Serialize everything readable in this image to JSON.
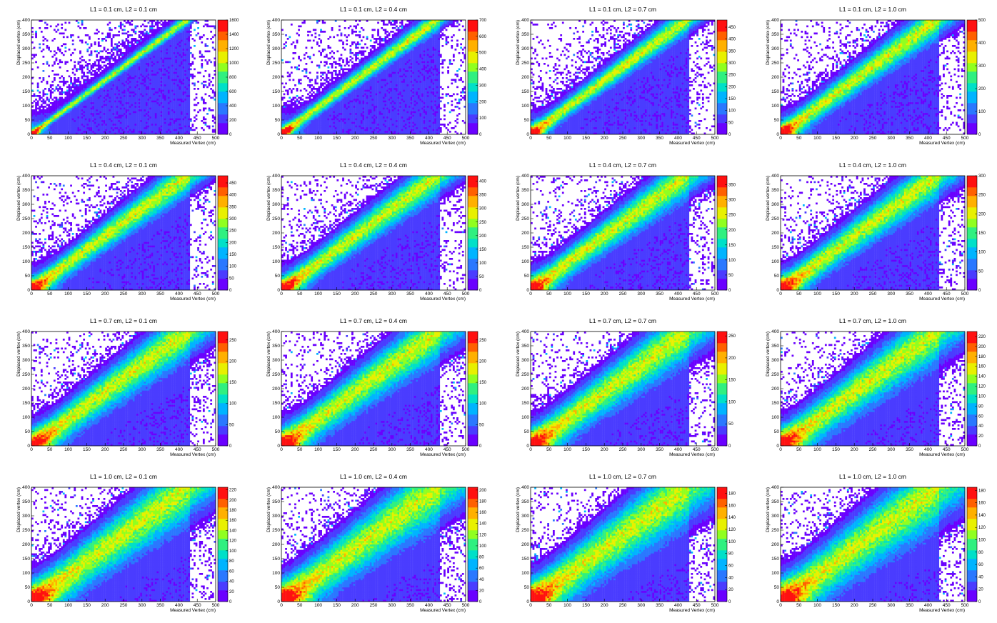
{
  "figure": {
    "rows": 4,
    "cols": 4
  },
  "chart_data": [
    {
      "type": "heatmap",
      "title": "L1 = 0.1 cm, L2 = 0.1 cm",
      "xlabel": "Measured Vertex (cm)",
      "ylabel": "Displaced vertex (cm)",
      "xlim": [
        0,
        500
      ],
      "ylim": [
        0,
        400
      ],
      "x_ticks": [
        "0",
        "50",
        "100",
        "150",
        "200",
        "250",
        "300",
        "350",
        "400",
        "450",
        "500"
      ],
      "y_ticks": [
        "0",
        "50",
        "100",
        "150",
        "200",
        "250",
        "300",
        "350",
        "400"
      ],
      "zlim": [
        0,
        1600
      ],
      "z_ticks": [
        "0",
        "200",
        "400",
        "600",
        "800",
        "1000",
        "1200",
        "1400",
        "1600"
      ],
      "band": {
        "slope": 0.95,
        "offset": 0,
        "width_cm": 8,
        "peak_z": 1600
      }
    },
    {
      "type": "heatmap",
      "title": "L1 = 0.1 cm, L2 = 0.4 cm",
      "xlabel": "Measured Vertex (cm)",
      "ylabel": "Displaced vertex (cm)",
      "xlim": [
        0,
        500
      ],
      "ylim": [
        0,
        400
      ],
      "x_ticks": [
        "0",
        "50",
        "100",
        "150",
        "200",
        "250",
        "300",
        "350",
        "400",
        "450",
        "500"
      ],
      "y_ticks": [
        "0",
        "50",
        "100",
        "150",
        "200",
        "250",
        "300",
        "350",
        "400"
      ],
      "zlim": [
        0,
        700
      ],
      "z_ticks": [
        "0",
        "100",
        "200",
        "300",
        "400",
        "500",
        "600",
        "700"
      ],
      "band": {
        "slope": 0.95,
        "offset": 0,
        "width_cm": 14,
        "peak_z": 700
      }
    },
    {
      "type": "heatmap",
      "title": "L1 = 0.1 cm, L2 = 0.7 cm",
      "xlabel": "Measured Vertex (cm)",
      "ylabel": "Displaced vertex (cm)",
      "xlim": [
        0,
        500
      ],
      "ylim": [
        0,
        400
      ],
      "x_ticks": [
        "0",
        "50",
        "100",
        "150",
        "200",
        "250",
        "300",
        "350",
        "400",
        "450",
        "500"
      ],
      "y_ticks": [
        "0",
        "50",
        "100",
        "150",
        "200",
        "250",
        "300",
        "350",
        "400"
      ],
      "zlim": [
        0,
        480
      ],
      "z_ticks": [
        "0",
        "50",
        "100",
        "150",
        "200",
        "250",
        "300",
        "350",
        "400",
        "450"
      ],
      "band": {
        "slope": 0.95,
        "offset": 0,
        "width_cm": 18,
        "peak_z": 470
      }
    },
    {
      "type": "heatmap",
      "title": "L1 = 0.1 cm, L2 = 1.0 cm",
      "xlabel": "Measured Vertex (cm)",
      "ylabel": "Displaced vertex (cm)",
      "xlim": [
        0,
        500
      ],
      "ylim": [
        0,
        400
      ],
      "x_ticks": [
        "0",
        "50",
        "100",
        "150",
        "200",
        "250",
        "300",
        "350",
        "400",
        "450",
        "500"
      ],
      "y_ticks": [
        "0",
        "50",
        "100",
        "150",
        "200",
        "250",
        "300",
        "350",
        "400"
      ],
      "zlim": [
        0,
        500
      ],
      "z_ticks": [
        "0",
        "100",
        "200",
        "300",
        "400",
        "500"
      ],
      "band": {
        "slope": 0.95,
        "offset": 0,
        "width_cm": 24,
        "peak_z": 500
      }
    },
    {
      "type": "heatmap",
      "title": "L1 = 0.4 cm, L2 = 0.1 cm",
      "xlabel": "Measured Vertex (cm)",
      "ylabel": "Displaced vertex (cm)",
      "xlim": [
        0,
        500
      ],
      "ylim": [
        0,
        400
      ],
      "x_ticks": [
        "0",
        "50",
        "100",
        "150",
        "200",
        "250",
        "300",
        "350",
        "400",
        "450",
        "500"
      ],
      "y_ticks": [
        "0",
        "50",
        "100",
        "150",
        "200",
        "250",
        "300",
        "350",
        "400"
      ],
      "zlim": [
        0,
        480
      ],
      "z_ticks": [
        "0",
        "50",
        "100",
        "150",
        "200",
        "250",
        "300",
        "350",
        "400",
        "450"
      ],
      "band": {
        "slope": 0.95,
        "offset": 0,
        "width_cm": 24,
        "peak_z": 470
      }
    },
    {
      "type": "heatmap",
      "title": "L1 = 0.4 cm, L2 = 0.4 cm",
      "xlabel": "Measured Vertex (cm)",
      "ylabel": "Displaced vertex (cm)",
      "xlim": [
        0,
        500
      ],
      "ylim": [
        0,
        400
      ],
      "x_ticks": [
        "0",
        "50",
        "100",
        "150",
        "200",
        "250",
        "300",
        "350",
        "400",
        "450",
        "500"
      ],
      "y_ticks": [
        "0",
        "50",
        "100",
        "150",
        "200",
        "250",
        "300",
        "350",
        "400"
      ],
      "zlim": [
        0,
        420
      ],
      "z_ticks": [
        "0",
        "50",
        "100",
        "150",
        "200",
        "250",
        "300",
        "350",
        "400"
      ],
      "band": {
        "slope": 0.95,
        "offset": 0,
        "width_cm": 26,
        "peak_z": 410
      }
    },
    {
      "type": "heatmap",
      "title": "L1 = 0.4 cm, L2 = 0.7 cm",
      "xlabel": "Measured Vertex (cm)",
      "ylabel": "Displaced vertex (cm)",
      "xlim": [
        0,
        500
      ],
      "ylim": [
        0,
        400
      ],
      "x_ticks": [
        "0",
        "50",
        "100",
        "150",
        "200",
        "250",
        "300",
        "350",
        "400",
        "450",
        "500"
      ],
      "y_ticks": [
        "0",
        "50",
        "100",
        "150",
        "200",
        "250",
        "300",
        "350",
        "400"
      ],
      "zlim": [
        0,
        380
      ],
      "z_ticks": [
        "0",
        "50",
        "100",
        "150",
        "200",
        "250",
        "300",
        "350"
      ],
      "band": {
        "slope": 0.95,
        "offset": 0,
        "width_cm": 28,
        "peak_z": 370
      }
    },
    {
      "type": "heatmap",
      "title": "L1 = 0.4 cm, L2 = 1.0 cm",
      "xlabel": "Measured Vertex (cm)",
      "ylabel": "Displaced vertex (cm)",
      "xlim": [
        0,
        500
      ],
      "ylim": [
        0,
        400
      ],
      "x_ticks": [
        "0",
        "50",
        "100",
        "150",
        "200",
        "250",
        "300",
        "350",
        "400",
        "450",
        "500"
      ],
      "y_ticks": [
        "0",
        "50",
        "100",
        "150",
        "200",
        "250",
        "300",
        "350",
        "400"
      ],
      "zlim": [
        0,
        300
      ],
      "z_ticks": [
        "0",
        "50",
        "100",
        "150",
        "200",
        "250",
        "300"
      ],
      "band": {
        "slope": 0.95,
        "offset": 0,
        "width_cm": 30,
        "peak_z": 300
      }
    },
    {
      "type": "heatmap",
      "title": "L1 = 0.7 cm, L2 = 0.1 cm",
      "xlabel": "Measured Vertex (cm)",
      "ylabel": "Displaced vertex (cm)",
      "xlim": [
        0,
        500
      ],
      "ylim": [
        0,
        400
      ],
      "x_ticks": [
        "0",
        "50",
        "100",
        "150",
        "200",
        "250",
        "300",
        "350",
        "400",
        "450",
        "500"
      ],
      "y_ticks": [
        "0",
        "50",
        "100",
        "150",
        "200",
        "250",
        "300",
        "350",
        "400"
      ],
      "zlim": [
        0,
        270
      ],
      "z_ticks": [
        "0",
        "50",
        "100",
        "150",
        "200",
        "250"
      ],
      "band": {
        "slope": 0.95,
        "offset": 0,
        "width_cm": 34,
        "peak_z": 260
      }
    },
    {
      "type": "heatmap",
      "title": "L1 = 0.7 cm, L2 = 0.4 cm",
      "xlabel": "Measured Vertex (cm)",
      "ylabel": "Displaced vertex (cm)",
      "xlim": [
        0,
        500
      ],
      "ylim": [
        0,
        400
      ],
      "x_ticks": [
        "0",
        "50",
        "100",
        "150",
        "200",
        "250",
        "300",
        "350",
        "400",
        "450",
        "500"
      ],
      "y_ticks": [
        "0",
        "50",
        "100",
        "150",
        "200",
        "250",
        "300",
        "350",
        "400"
      ],
      "zlim": [
        0,
        270
      ],
      "z_ticks": [
        "0",
        "50",
        "100",
        "150",
        "200",
        "250"
      ],
      "band": {
        "slope": 0.95,
        "offset": 0,
        "width_cm": 36,
        "peak_z": 260
      }
    },
    {
      "type": "heatmap",
      "title": "L1 = 0.7 cm, L2 = 0.7 cm",
      "xlabel": "Measured Vertex (cm)",
      "ylabel": "Displaced vertex (cm)",
      "xlim": [
        0,
        500
      ],
      "ylim": [
        0,
        400
      ],
      "x_ticks": [
        "0",
        "50",
        "100",
        "150",
        "200",
        "250",
        "300",
        "350",
        "400",
        "450",
        "500"
      ],
      "y_ticks": [
        "0",
        "50",
        "100",
        "150",
        "200",
        "250",
        "300",
        "350",
        "400"
      ],
      "zlim": [
        0,
        260
      ],
      "z_ticks": [
        "0",
        "50",
        "100",
        "150",
        "200",
        "250"
      ],
      "band": {
        "slope": 0.95,
        "offset": 0,
        "width_cm": 38,
        "peak_z": 250
      }
    },
    {
      "type": "heatmap",
      "title": "L1 = 0.7 cm, L2 = 1.0 cm",
      "xlabel": "Measured Vertex (cm)",
      "ylabel": "Displaced vertex (cm)",
      "xlim": [
        0,
        500
      ],
      "ylim": [
        0,
        400
      ],
      "x_ticks": [
        "0",
        "50",
        "100",
        "150",
        "200",
        "250",
        "300",
        "350",
        "400",
        "450",
        "500"
      ],
      "y_ticks": [
        "0",
        "50",
        "100",
        "150",
        "200",
        "250",
        "300",
        "350",
        "400"
      ],
      "zlim": [
        0,
        230
      ],
      "z_ticks": [
        "0",
        "20",
        "40",
        "60",
        "80",
        "100",
        "120",
        "140",
        "160",
        "180",
        "200",
        "220"
      ],
      "band": {
        "slope": 0.95,
        "offset": 0,
        "width_cm": 40,
        "peak_z": 225
      }
    },
    {
      "type": "heatmap",
      "title": "L1 = 1.0 cm, L2 = 0.1 cm",
      "xlabel": "Measured Vertex (cm)",
      "ylabel": "Displaced vertex (cm)",
      "xlim": [
        0,
        500
      ],
      "ylim": [
        0,
        400
      ],
      "x_ticks": [
        "0",
        "50",
        "100",
        "150",
        "200",
        "250",
        "300",
        "350",
        "400",
        "450",
        "500"
      ],
      "y_ticks": [
        "0",
        "50",
        "100",
        "150",
        "200",
        "250",
        "300",
        "350",
        "400"
      ],
      "zlim": [
        0,
        225
      ],
      "z_ticks": [
        "0",
        "20",
        "40",
        "60",
        "80",
        "100",
        "120",
        "140",
        "160",
        "180",
        "200",
        "220"
      ],
      "band": {
        "slope": 0.95,
        "offset": 0,
        "width_cm": 44,
        "peak_z": 220
      }
    },
    {
      "type": "heatmap",
      "title": "L1 = 1.0 cm, L2 = 0.4 cm",
      "xlabel": "Measured Vertex (cm)",
      "ylabel": "Displaced vertex (cm)",
      "xlim": [
        0,
        500
      ],
      "ylim": [
        0,
        400
      ],
      "x_ticks": [
        "0",
        "50",
        "100",
        "150",
        "200",
        "250",
        "300",
        "350",
        "400",
        "450",
        "500"
      ],
      "y_ticks": [
        "0",
        "50",
        "100",
        "150",
        "200",
        "250",
        "300",
        "350",
        "400"
      ],
      "zlim": [
        0,
        205
      ],
      "z_ticks": [
        "0",
        "20",
        "40",
        "60",
        "80",
        "100",
        "120",
        "140",
        "160",
        "180",
        "200"
      ],
      "band": {
        "slope": 0.95,
        "offset": 0,
        "width_cm": 46,
        "peak_z": 200
      }
    },
    {
      "type": "heatmap",
      "title": "L1 = 1.0 cm, L2 = 0.7 cm",
      "xlabel": "Measured Vertex (cm)",
      "ylabel": "Displaced vertex (cm)",
      "xlim": [
        0,
        500
      ],
      "ylim": [
        0,
        400
      ],
      "x_ticks": [
        "0",
        "50",
        "100",
        "150",
        "200",
        "250",
        "300",
        "350",
        "400",
        "450",
        "500"
      ],
      "y_ticks": [
        "0",
        "50",
        "100",
        "150",
        "200",
        "250",
        "300",
        "350",
        "400"
      ],
      "zlim": [
        0,
        190
      ],
      "z_ticks": [
        "0",
        "20",
        "40",
        "60",
        "80",
        "100",
        "120",
        "140",
        "160",
        "180"
      ],
      "band": {
        "slope": 0.95,
        "offset": 0,
        "width_cm": 48,
        "peak_z": 185
      }
    },
    {
      "type": "heatmap",
      "title": "L1 = 1.0 cm, L2 = 1.0 cm",
      "xlabel": "Measured Vertex (cm)",
      "ylabel": "Displaced vertex (cm)",
      "xlim": [
        0,
        500
      ],
      "ylim": [
        0,
        400
      ],
      "x_ticks": [
        "0",
        "50",
        "100",
        "150",
        "200",
        "250",
        "300",
        "350",
        "400",
        "450",
        "500"
      ],
      "y_ticks": [
        "0",
        "50",
        "100",
        "150",
        "200",
        "250",
        "300",
        "350",
        "400"
      ],
      "zlim": [
        0,
        185
      ],
      "z_ticks": [
        "0",
        "20",
        "40",
        "60",
        "80",
        "100",
        "120",
        "140",
        "160",
        "180"
      ],
      "band": {
        "slope": 0.95,
        "offset": 0,
        "width_cm": 50,
        "peak_z": 180
      }
    }
  ],
  "colors": {
    "background": "#ffffff",
    "palette": [
      "#6a00ff",
      "#4a3cff",
      "#2a78ff",
      "#00b4ff",
      "#00e0c8",
      "#30f080",
      "#90ff20",
      "#e8f000",
      "#ffb000",
      "#ff6000",
      "#ff1010"
    ]
  }
}
